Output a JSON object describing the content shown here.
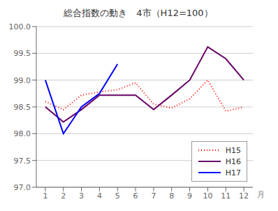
{
  "chart_data": {
    "type": "line",
    "title": "総合指数の動き　4市（H12=100）",
    "xlabel": "月",
    "x": [
      1,
      2,
      3,
      4,
      5,
      6,
      7,
      8,
      9,
      10,
      11,
      12
    ],
    "xlim": [
      0.5,
      12.5
    ],
    "xticks": [
      1,
      2,
      3,
      4,
      5,
      6,
      7,
      8,
      9,
      10,
      11,
      12
    ],
    "ylim": [
      97.0,
      100.0
    ],
    "yticks": [
      {
        "value": 97.0,
        "label": "97.0"
      },
      97.5,
      {
        "value": 98.0,
        "label": "98.0"
      },
      98.5,
      {
        "value": 99.0,
        "label": "99.0"
      },
      99.5,
      {
        "value": 100.0,
        "label": "100.0"
      }
    ],
    "grid": "y",
    "legend": "lower right",
    "series": [
      {
        "name": "H15",
        "color": "#ff0000",
        "line_style": "dotted",
        "values": [
          98.6,
          98.45,
          98.72,
          98.78,
          98.82,
          98.95,
          98.55,
          98.48,
          98.65,
          99.0,
          98.42,
          98.5
        ]
      },
      {
        "name": "H16",
        "color": "#660066",
        "line_style": "solid",
        "values": [
          98.5,
          98.22,
          98.45,
          98.72,
          98.72,
          98.72,
          98.45,
          98.72,
          99.0,
          99.62,
          99.4,
          99.0
        ]
      },
      {
        "name": "H17",
        "color": "#0000ff",
        "line_style": "solid",
        "values": [
          99.0,
          98.0,
          98.5,
          98.75,
          99.3,
          null,
          null,
          null,
          null,
          null,
          null,
          null
        ]
      }
    ]
  }
}
